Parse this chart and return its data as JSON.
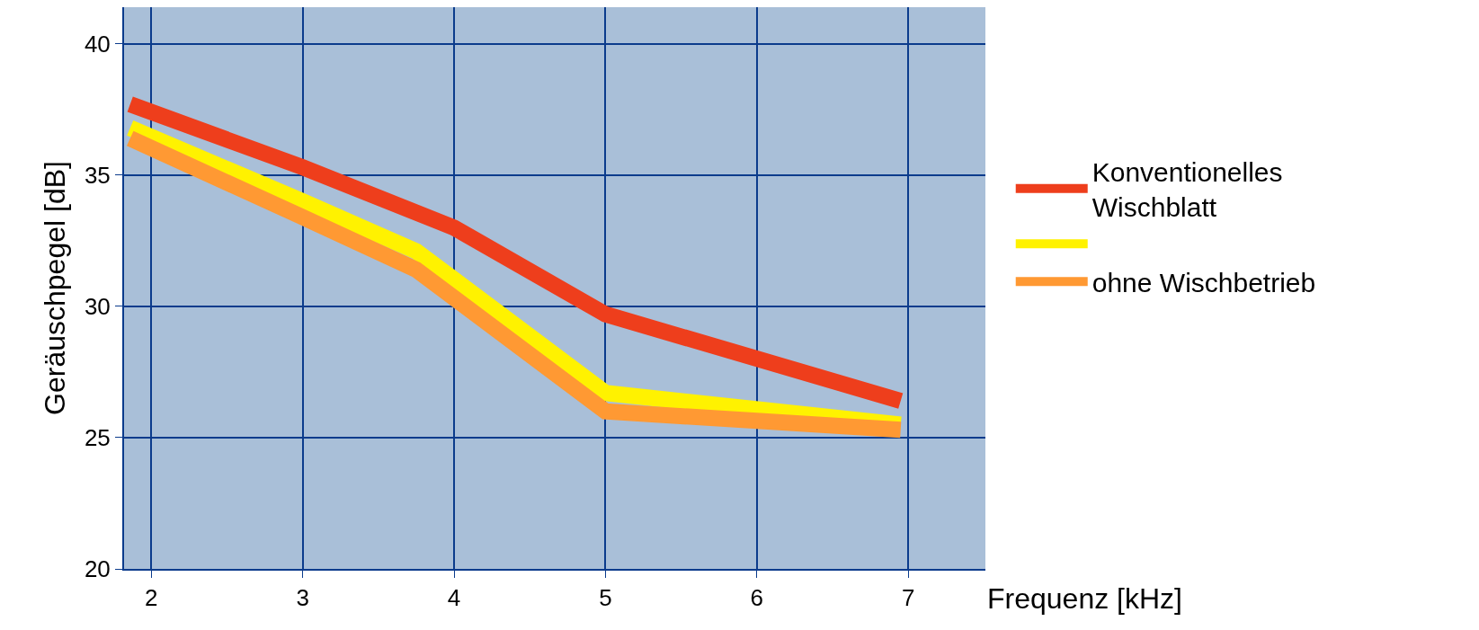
{
  "chart_data": {
    "type": "line",
    "xlabel": "Frequenz [kHz]",
    "ylabel": "Geräuschpegel [dB]",
    "xlim": [
      1.82,
      7.51
    ],
    "xticks": [
      2,
      3,
      4,
      5,
      6,
      7
    ],
    "ylim": [
      20,
      41.4
    ],
    "yticks": [
      20,
      25,
      30,
      35,
      40
    ],
    "grid": true,
    "legend": "right",
    "line_style": "solid",
    "marker": "none",
    "series": [
      {
        "name": "Konventionelles\nWischblatt",
        "color": "#ee3e1c",
        "x": [
          1.86,
          3,
          4,
          5,
          6.95
        ],
        "values": [
          37.7,
          35.3,
          33.0,
          29.7,
          26.4
        ]
      },
      {
        "color": "#fff200",
        "x": [
          1.86,
          3,
          3.75,
          5,
          6.95
        ],
        "values": [
          36.8,
          34.0,
          32.1,
          26.7,
          25.5
        ]
      },
      {
        "name": "ohne Wischbetrieb",
        "color": "#ff9933",
        "x": [
          1.86,
          3,
          3.75,
          5,
          6.95
        ],
        "values": [
          36.4,
          33.4,
          31.4,
          26.0,
          25.3
        ]
      }
    ]
  }
}
